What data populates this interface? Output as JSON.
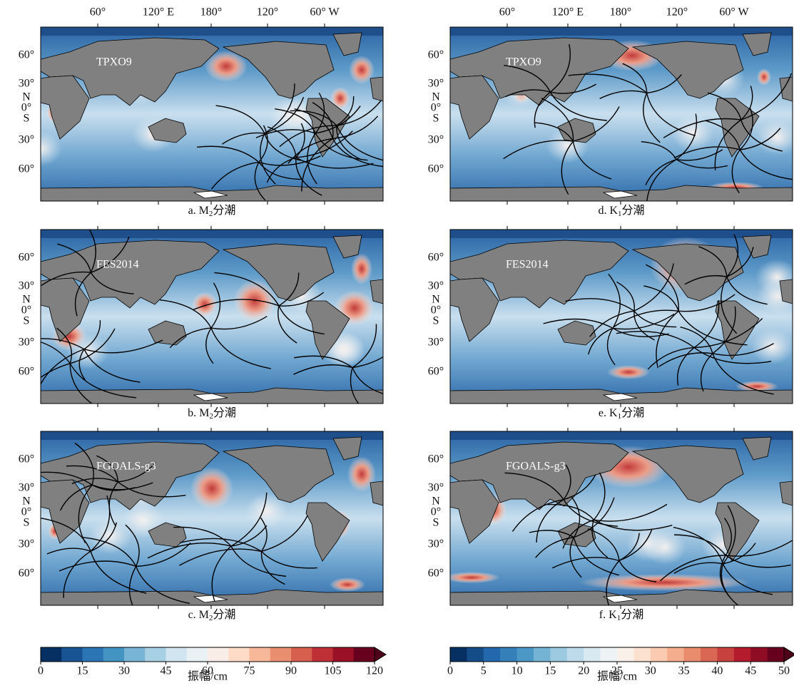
{
  "x_axis_labels": [
    "60°",
    "120° E",
    "180°",
    "120°",
    "60° W"
  ],
  "y_axis_labels": [
    "60°",
    "30°",
    "N",
    "0°",
    "S",
    "30°",
    "60°"
  ],
  "panels": [
    {
      "model": "TPXO9",
      "label": "a.",
      "symbol": "M",
      "subscript": "2",
      "text": "分潮"
    },
    {
      "model": "FES2014",
      "label": "b.",
      "symbol": "M",
      "subscript": "2",
      "text": "分潮"
    },
    {
      "model": "FGOALS-g3",
      "label": "c.",
      "symbol": "M",
      "subscript": "2",
      "text": "分潮"
    },
    {
      "model": "TPXO9",
      "label": "d.",
      "symbol": "K",
      "subscript": "1",
      "text": "分潮"
    },
    {
      "model": "FES2014",
      "label": "e.",
      "symbol": "K",
      "subscript": "1",
      "text": "分潮"
    },
    {
      "model": "FGOALS-g3",
      "label": "f.",
      "symbol": "K",
      "subscript": "1",
      "text": "分潮"
    }
  ],
  "colorbars": [
    {
      "ticks": [
        0,
        15,
        30,
        45,
        60,
        75,
        90,
        105,
        120
      ],
      "label": "振幅/cm"
    },
    {
      "ticks": [
        0,
        5,
        10,
        15,
        20,
        25,
        30,
        35,
        40,
        45,
        50
      ],
      "label": "振幅/cm"
    }
  ]
}
